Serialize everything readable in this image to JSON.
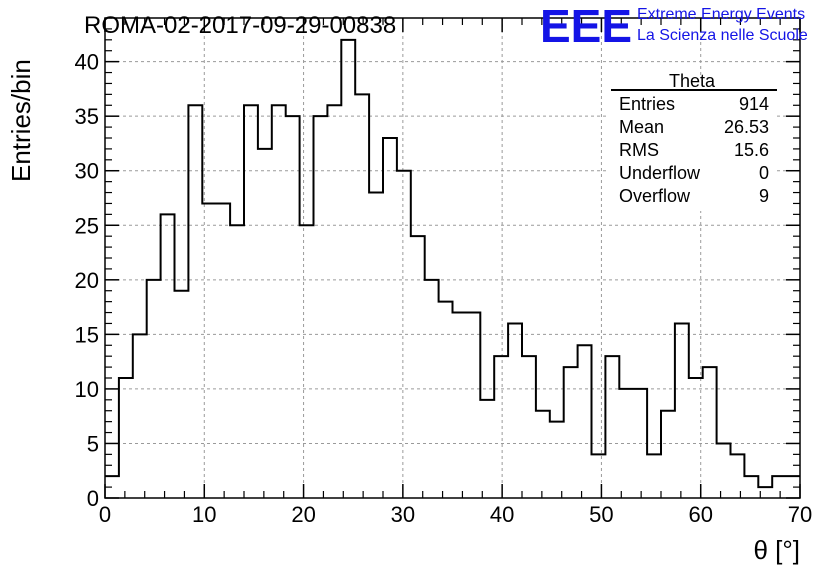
{
  "header": {
    "run_title": "ROMA-02-2017-09-29-00838",
    "logo_letters": "EEE",
    "logo_line1": "Extreme Energy Events",
    "logo_line2": "La Scienza nelle Scuole"
  },
  "colors": {
    "logo_blue": "#1414e6",
    "axis": "#000000",
    "grid": "#9a9a9a",
    "histogram": "#000000",
    "background": "#ffffff"
  },
  "stats": {
    "title": "Theta",
    "rows": [
      {
        "label": "Entries",
        "value": "914"
      },
      {
        "label": "Mean",
        "value": "26.53"
      },
      {
        "label": "RMS",
        "value": "15.6"
      },
      {
        "label": "Underflow",
        "value": "0"
      },
      {
        "label": "Overflow",
        "value": "9"
      }
    ]
  },
  "chart_data": {
    "type": "histogram",
    "xlabel": "θ [°]",
    "ylabel": "Entries/bin",
    "xlim": [
      0,
      70
    ],
    "ylim": [
      0,
      44
    ],
    "bin_width": 1.4,
    "x_ticks": [
      0,
      10,
      20,
      30,
      40,
      50,
      60,
      70
    ],
    "y_ticks": [
      0,
      5,
      10,
      15,
      20,
      25,
      30,
      35,
      40
    ],
    "grid": true,
    "values": [
      2,
      11,
      15,
      20,
      26,
      19,
      36,
      27,
      27,
      25,
      36,
      32,
      36,
      35,
      25,
      35,
      36,
      42,
      37,
      28,
      33,
      30,
      24,
      20,
      18,
      17,
      17,
      9,
      13,
      16,
      13,
      8,
      7,
      12,
      14,
      4,
      13,
      10,
      10,
      4,
      8,
      16,
      11,
      12,
      5,
      4,
      2,
      1,
      2,
      2
    ]
  }
}
